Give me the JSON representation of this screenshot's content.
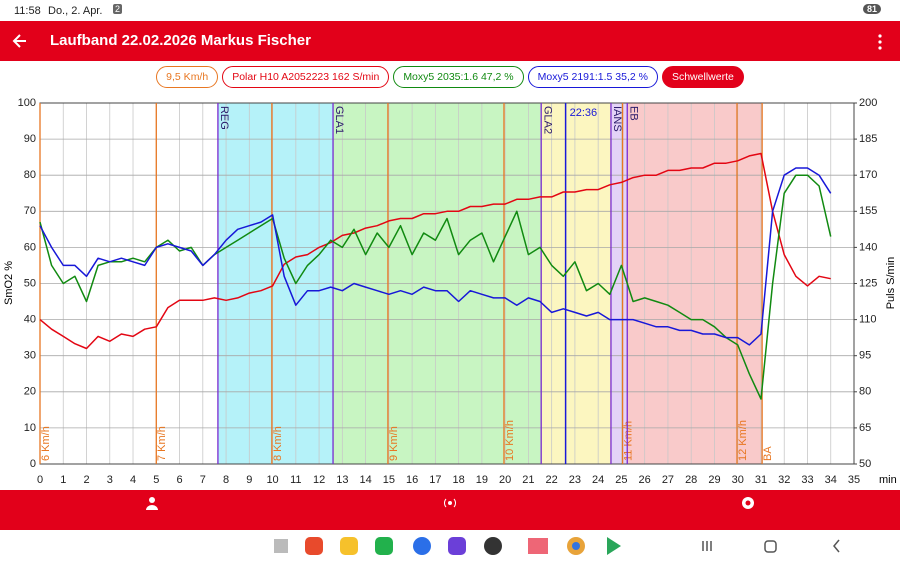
{
  "status_bar": {
    "time": "11:58",
    "date": "Do., 2. Apr.",
    "badge": "2",
    "battery": "81"
  },
  "app_bar": {
    "title": "Laufband 22.02.2026 Markus Fischer"
  },
  "chips": {
    "speed": "9,5 Km/h",
    "thresholds": "Schwellwerte"
  },
  "chart_data": {
    "type": "line",
    "xlabel": "min",
    "ylabel": "SmO2 %",
    "y2label": "Puls S/min",
    "xlim": [
      0,
      35
    ],
    "xticks": [
      0,
      1,
      2,
      3,
      4,
      5,
      6,
      7,
      8,
      9,
      10,
      11,
      12,
      13,
      14,
      15,
      16,
      17,
      18,
      19,
      20,
      21,
      22,
      23,
      24,
      25,
      26,
      27,
      28,
      29,
      30,
      31,
      32,
      33,
      34,
      35
    ],
    "ylim": [
      0,
      100
    ],
    "yticks": [
      0,
      10,
      20,
      30,
      40,
      50,
      60,
      70,
      80,
      90,
      100
    ],
    "y2lim": [
      50,
      200
    ],
    "y2ticks": [
      50,
      65,
      80,
      95,
      110,
      125,
      140,
      155,
      170,
      185,
      200
    ],
    "grid": true,
    "x": [
      0,
      0.5,
      1,
      1.5,
      2,
      2.5,
      3,
      3.5,
      4,
      4.5,
      5,
      5.5,
      6,
      6.5,
      7,
      7.5,
      8,
      8.5,
      9,
      9.5,
      10,
      10.5,
      11,
      11.5,
      12,
      12.5,
      13,
      13.5,
      14,
      14.5,
      15,
      15.5,
      16,
      16.5,
      17,
      17.5,
      18,
      18.5,
      19,
      19.5,
      20,
      20.5,
      21,
      21.5,
      22,
      22.5,
      23,
      23.5,
      24,
      24.5,
      25,
      25.5,
      26,
      26.5,
      27,
      27.5,
      28,
      28.5,
      29,
      29.5,
      30,
      30.5,
      31,
      31.5,
      32,
      32.5,
      33,
      33.5,
      34
    ],
    "series": [
      {
        "name": "Polar H10 A2052223 162 S/min",
        "color": "#e30613",
        "axis": "y2",
        "values": [
          110,
          106,
          103,
          100,
          98,
          103,
          101,
          104,
          103,
          106,
          107,
          115,
          118,
          118,
          118,
          119,
          118,
          119,
          121,
          122,
          124,
          133,
          136,
          137,
          140,
          142,
          145,
          146,
          148,
          149,
          151,
          152,
          152,
          154,
          154,
          155,
          155,
          157,
          157,
          158,
          158,
          160,
          160,
          161,
          161,
          163,
          163,
          164,
          164,
          166,
          167,
          169,
          170,
          170,
          172,
          172,
          173,
          173,
          175,
          175,
          176,
          178,
          179,
          155,
          137,
          128,
          124,
          128,
          127
        ]
      },
      {
        "name": "Moxy5 2035:1.6 47,2 %",
        "color": "#118a11",
        "values": [
          67,
          55,
          50,
          52,
          45,
          55,
          56,
          56,
          57,
          56,
          60,
          62,
          59,
          60,
          55,
          58,
          60,
          62,
          64,
          66,
          68,
          57,
          50,
          55,
          58,
          62,
          60,
          65,
          58,
          64,
          60,
          66,
          58,
          64,
          62,
          68,
          58,
          62,
          64,
          56,
          63,
          70,
          58,
          60,
          55,
          52,
          56,
          48,
          50,
          47,
          55,
          45,
          46,
          45,
          44,
          42,
          40,
          40,
          38,
          35,
          33,
          25,
          18,
          50,
          75,
          80,
          80,
          77,
          63
        ]
      },
      {
        "name": "Moxy5 2191:1.5 35,2 %",
        "color": "#1818d8",
        "values": [
          66,
          60,
          55,
          55,
          52,
          57,
          56,
          57,
          56,
          55,
          60,
          61,
          60,
          59,
          55,
          58,
          62,
          65,
          66,
          67,
          69,
          52,
          44,
          48,
          48,
          49,
          48,
          50,
          49,
          48,
          47,
          48,
          47,
          49,
          48,
          48,
          45,
          48,
          47,
          46,
          46,
          44,
          46,
          45,
          42,
          43,
          42,
          41,
          42,
          40,
          40,
          40,
          39,
          38,
          38,
          37,
          37,
          36,
          36,
          35,
          35,
          33,
          36,
          70,
          80,
          82,
          82,
          80,
          75
        ]
      }
    ],
    "zones": [
      {
        "from": 7.65,
        "to": 12.6,
        "color": "#b5f2f9"
      },
      {
        "from": 12.6,
        "to": 21.55,
        "color": "#c8f5c2"
      },
      {
        "from": 21.55,
        "to": 24.55,
        "color": "#fcf6c0"
      },
      {
        "from": 24.55,
        "to": 25.25,
        "color": "#e4d3f7"
      },
      {
        "from": 25.25,
        "to": 31.05,
        "color": "#f9caca"
      }
    ],
    "speed_marks": {
      "color": "#e87722",
      "marks": [
        {
          "x": 0,
          "label": "6 Km/h"
        },
        {
          "x": 5,
          "label": "7 Km/h"
        },
        {
          "x": 9.97,
          "label": "8 Km/h"
        },
        {
          "x": 14.96,
          "label": "9 Km/h"
        },
        {
          "x": 19.95,
          "label": "10 Km/h"
        },
        {
          "x": 25.05,
          "label": "11 Km/h"
        },
        {
          "x": 29.97,
          "label": "12 Km/h"
        },
        {
          "x": 31.05,
          "label": "BA"
        }
      ]
    },
    "threshold_marks": {
      "color": "#7a2ad0",
      "marks": [
        {
          "x": 7.65,
          "label": "REG"
        },
        {
          "x": 12.6,
          "label": "GLA1"
        },
        {
          "x": 21.55,
          "label": "GLA2"
        },
        {
          "x": 24.55,
          "label": "IANS"
        },
        {
          "x": 25.25,
          "label": "EB"
        }
      ]
    },
    "time_mark": {
      "x": 22.6,
      "label": "22:36",
      "color": "#1818d8"
    }
  }
}
